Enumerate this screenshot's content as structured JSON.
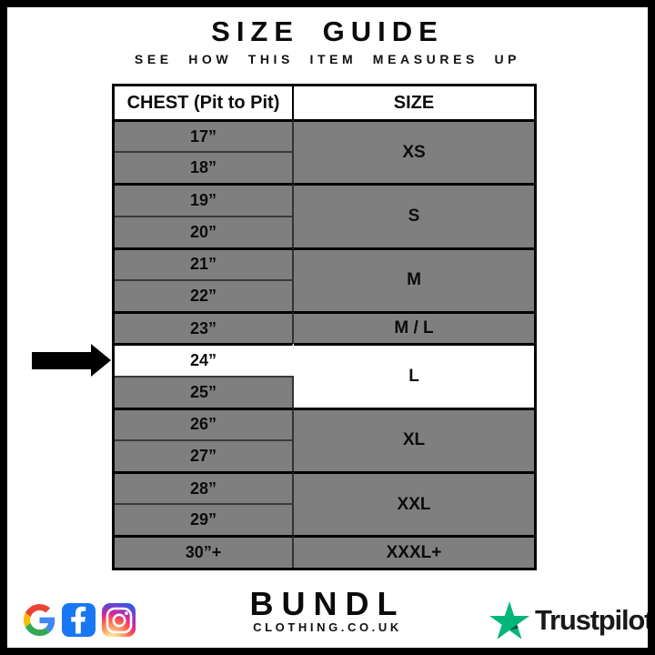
{
  "page": {
    "title": "SIZE GUIDE",
    "subtitle": "SEE HOW THIS ITEM MEASURES UP"
  },
  "chart_data": {
    "type": "table",
    "title": "SIZE GUIDE",
    "subtitle": "SEE HOW THIS ITEM MEASURES UP",
    "columns": [
      "CHEST (Pit to Pit)",
      "SIZE"
    ],
    "groups": [
      {
        "chest": [
          "17”",
          "18”"
        ],
        "size": "XS"
      },
      {
        "chest": [
          "19”",
          "20”"
        ],
        "size": "S"
      },
      {
        "chest": [
          "21”",
          "22”"
        ],
        "size": "M"
      },
      {
        "chest": [
          "23”"
        ],
        "size": "M / L"
      },
      {
        "chest": [
          "24”",
          "25”"
        ],
        "size": "L"
      },
      {
        "chest": [
          "26”",
          "27”"
        ],
        "size": "XL"
      },
      {
        "chest": [
          "28”",
          "29”"
        ],
        "size": "XXL"
      },
      {
        "chest": [
          "30”+"
        ],
        "size": "XXXL+"
      }
    ],
    "highlight": {
      "chest": "24”",
      "size": "L"
    },
    "annotation": {
      "type": "arrow",
      "points_to": "24”"
    },
    "layout": {
      "row_fill": "#7f7f7f",
      "highlight_fill": "#ffffff",
      "grid": "on"
    }
  },
  "footer": {
    "brand": "BUNDL",
    "brand_domain": "CLOTHING.CO.UK",
    "social_icons": [
      "google-icon",
      "facebook-icon",
      "instagram-icon"
    ],
    "trustpilot_label": "Trustpilot"
  },
  "colors": {
    "row_gray": "#7f7f7f",
    "border_black": "#000000",
    "trustpilot_green": "#00b67a",
    "trustpilot_dark_green": "#005128",
    "facebook_blue": "#1877f2"
  }
}
